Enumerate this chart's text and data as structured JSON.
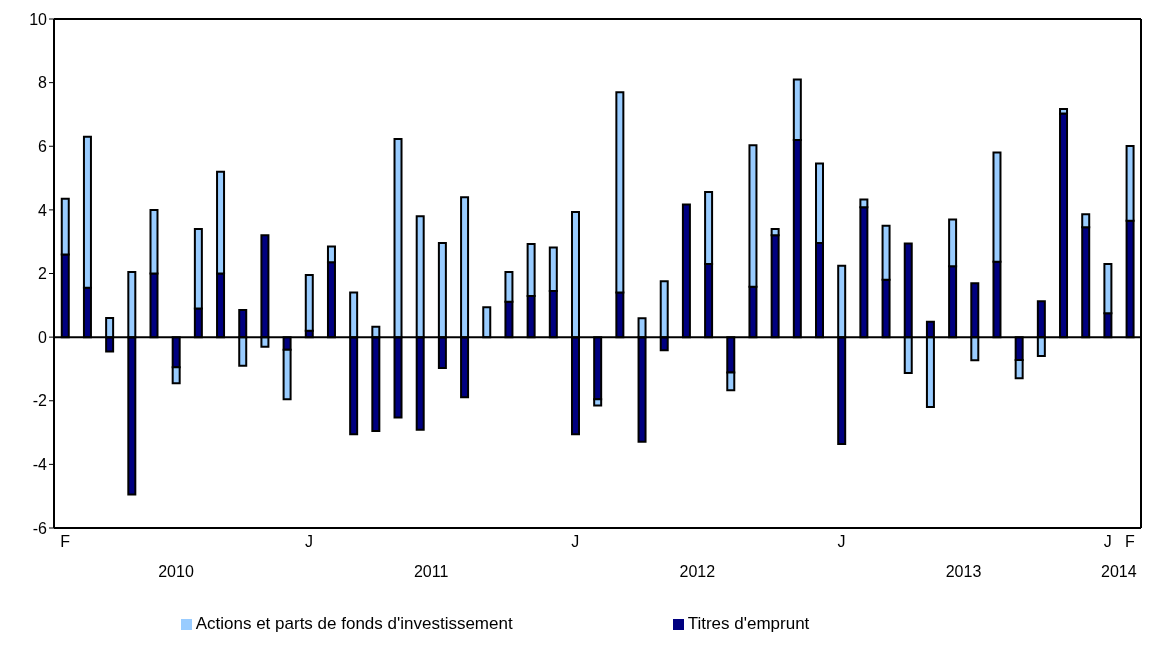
{
  "chart_data": {
    "type": "bar",
    "stacked": true,
    "categories": [
      "F",
      null,
      null,
      null,
      null,
      null,
      null,
      null,
      null,
      null,
      null,
      "J",
      null,
      null,
      null,
      null,
      null,
      null,
      null,
      null,
      null,
      null,
      null,
      "J",
      null,
      null,
      null,
      null,
      null,
      null,
      null,
      null,
      null,
      null,
      null,
      "J",
      null,
      null,
      null,
      null,
      null,
      null,
      null,
      null,
      null,
      null,
      null,
      "J",
      "F"
    ],
    "series": [
      {
        "name": "Titres d'emprunt",
        "color": "#000080",
        "values": [
          2.6,
          1.55,
          -0.45,
          -4.95,
          2.0,
          -0.95,
          0.9,
          2.0,
          0.85,
          3.2,
          -0.4,
          0.2,
          2.35,
          -3.05,
          -2.95,
          -2.53,
          -2.91,
          -0.97,
          -1.89,
          0,
          1.11,
          1.29,
          1.45,
          -3.05,
          -1.95,
          1.4,
          -3.29,
          -0.41,
          4.17,
          2.3,
          -1.11,
          1.58,
          3.2,
          6.2,
          2.96,
          -3.36,
          4.08,
          1.8,
          2.94,
          0.48,
          2.23,
          1.69,
          2.37,
          -0.72,
          1.13,
          7.03,
          3.45,
          0.75,
          3.66
        ]
      },
      {
        "name": "Actions et parts de fonds d'investissement",
        "color": "#99ccff",
        "values": [
          1.75,
          4.75,
          0.6,
          2.05,
          2.0,
          -0.5,
          2.5,
          3.2,
          -0.9,
          -0.3,
          -1.55,
          1.75,
          0.5,
          1.4,
          0.33,
          6.23,
          3.8,
          2.96,
          4.4,
          0.94,
          0.94,
          1.64,
          1.37,
          3.93,
          -0.2,
          6.3,
          0.59,
          1.76,
          0,
          2.26,
          -0.56,
          4.45,
          0.2,
          1.9,
          2.5,
          2.24,
          0.25,
          1.7,
          -1.13,
          -2.2,
          1.47,
          -0.73,
          3.43,
          -0.57,
          -0.59,
          0.14,
          0.41,
          1.55,
          2.35
        ]
      }
    ],
    "ylim": [
      -6,
      10
    ],
    "yticks": [
      -6,
      -4,
      -2,
      0,
      2,
      4,
      6,
      8,
      10
    ],
    "legend": "bottom",
    "annotations": [
      "2010",
      "2011",
      "2012",
      "2013",
      "2014"
    ]
  }
}
